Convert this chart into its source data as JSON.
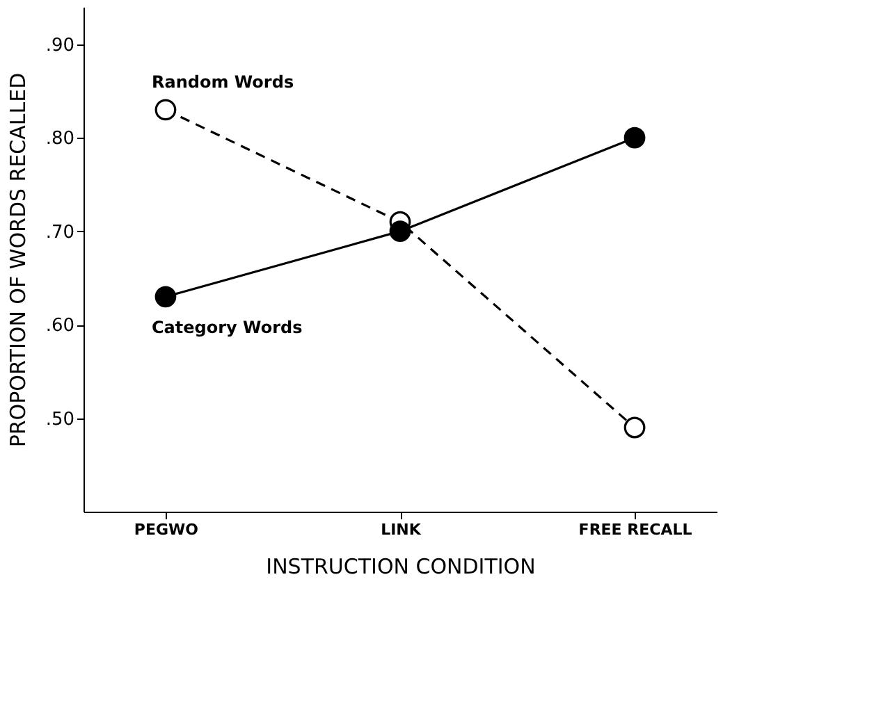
{
  "chart_data": {
    "type": "line",
    "xlabel": "INSTRUCTION CONDITION",
    "ylabel": "PROPORTION OF WORDS RECALLED",
    "categories": [
      "PEGWO",
      "LINK",
      "FREE RECALL"
    ],
    "series": [
      {
        "name": "Random Words",
        "color": "#000000",
        "values": [
          0.83,
          0.71,
          0.49
        ],
        "line_style": "dashed"
      },
      {
        "name": "Category Words",
        "color": "#000000",
        "values": [
          0.63,
          0.7,
          0.8
        ],
        "line_style": "solid"
      }
    ],
    "ylim": [
      0.4,
      0.94
    ],
    "yticks": [
      {
        "value": 0.5,
        "label": ".50"
      },
      {
        "value": 0.6,
        "label": ".60"
      },
      {
        "value": 0.7,
        "label": ".70"
      },
      {
        "value": 0.8,
        "label": ".80"
      },
      {
        "value": 0.9,
        "label": ".90"
      }
    ],
    "marker": "circle",
    "grid": false
  }
}
